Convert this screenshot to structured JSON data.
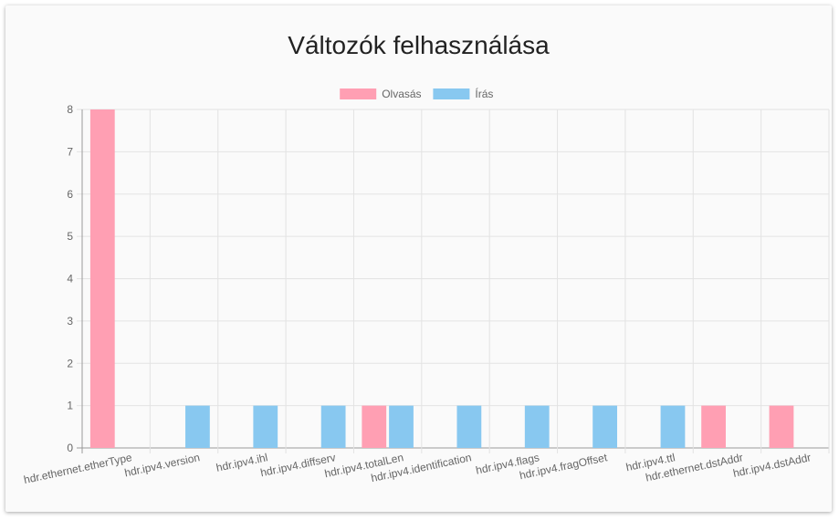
{
  "chart_data": {
    "type": "bar",
    "title": "Változók felhasználása",
    "categories": [
      "hdr.ethernet.etherType",
      "hdr.ipv4.version",
      "hdr.ipv4.ihl",
      "hdr.ipv4.diffserv",
      "hdr.ipv4.totalLen",
      "hdr.ipv4.identification",
      "hdr.ipv4.flags",
      "hdr.ipv4.fragOffset",
      "hdr.ipv4.ttl",
      "hdr.ethernet.dstAddr",
      "hdr.ipv4.dstAddr"
    ],
    "series": [
      {
        "name": "Olvasás",
        "color": "#ff9fb3",
        "values": [
          8,
          0,
          0,
          0,
          1,
          0,
          0,
          0,
          0,
          1,
          1
        ]
      },
      {
        "name": "Írás",
        "color": "#88c8f0",
        "values": [
          0,
          1,
          1,
          1,
          1,
          1,
          1,
          1,
          1,
          0,
          0
        ]
      }
    ],
    "ylim": [
      0,
      8
    ],
    "yticks": [
      0,
      1,
      2,
      3,
      4,
      5,
      6,
      7,
      8
    ],
    "grid": true,
    "legend": "top-center"
  }
}
